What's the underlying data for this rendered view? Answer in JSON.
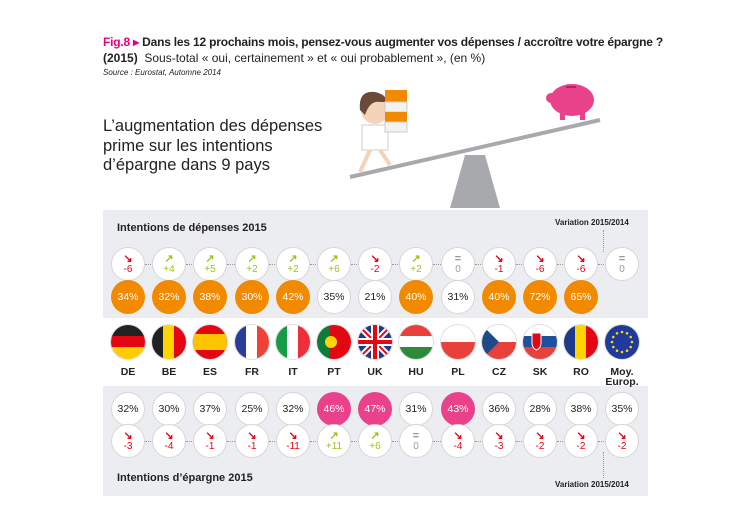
{
  "header": {
    "fig": "Fig.8",
    "arrow": "▸",
    "question": "Dans les 12 prochains mois, pensez-vous augmenter vos dépenses / accroître votre épargne ?",
    "year": "(2015)",
    "subtitle": "Sous-total « oui, certainement » et « oui probablement », (en %)",
    "source": "Source : Eurostat, Automne 2014"
  },
  "headline": "L’augmentation des dépenses prime sur les intentions d’épargne dans 9 pays",
  "colors": {
    "orange": "#f28a00",
    "pink": "#e9418a",
    "red": "#e30613",
    "green": "#9bc31f",
    "grey": "#999999",
    "panel": "#ecedf0"
  },
  "chart_data": {
    "type": "table",
    "countries": [
      "DE",
      "BE",
      "ES",
      "FR",
      "IT",
      "PT",
      "UK",
      "HU",
      "PL",
      "CZ",
      "SK",
      "RO",
      "Moy. Europ."
    ],
    "spending": {
      "title": "Intentions de dépenses 2015",
      "variation_label": "Variation 2015/2014",
      "values": [
        "34%",
        "32%",
        "38%",
        "30%",
        "42%",
        "35%",
        "21%",
        "40%",
        "31%",
        "40%",
        "72%",
        "65%",
        null
      ],
      "highlight": [
        true,
        true,
        true,
        true,
        true,
        false,
        false,
        true,
        false,
        true,
        true,
        true,
        false
      ],
      "variation": [
        "-6",
        "+4",
        "+5",
        "+2",
        "+2",
        "+6",
        "-2",
        "+2",
        "0",
        "-1",
        "-6",
        "-6",
        "0"
      ]
    },
    "savings": {
      "title": "Intentions d’épargne 2015",
      "variation_label": "Variation 2015/2014",
      "values": [
        "32%",
        "30%",
        "37%",
        "25%",
        "32%",
        "46%",
        "47%",
        "31%",
        "43%",
        "36%",
        "28%",
        "38%",
        "35%"
      ],
      "highlight": [
        false,
        false,
        false,
        false,
        false,
        true,
        true,
        false,
        true,
        false,
        false,
        false,
        false
      ],
      "variation": [
        "-3",
        "-4",
        "-1",
        "-1",
        "-11",
        "+11",
        "+6",
        "0",
        "-4",
        "-3",
        "-2",
        "-2",
        "-2"
      ]
    }
  }
}
